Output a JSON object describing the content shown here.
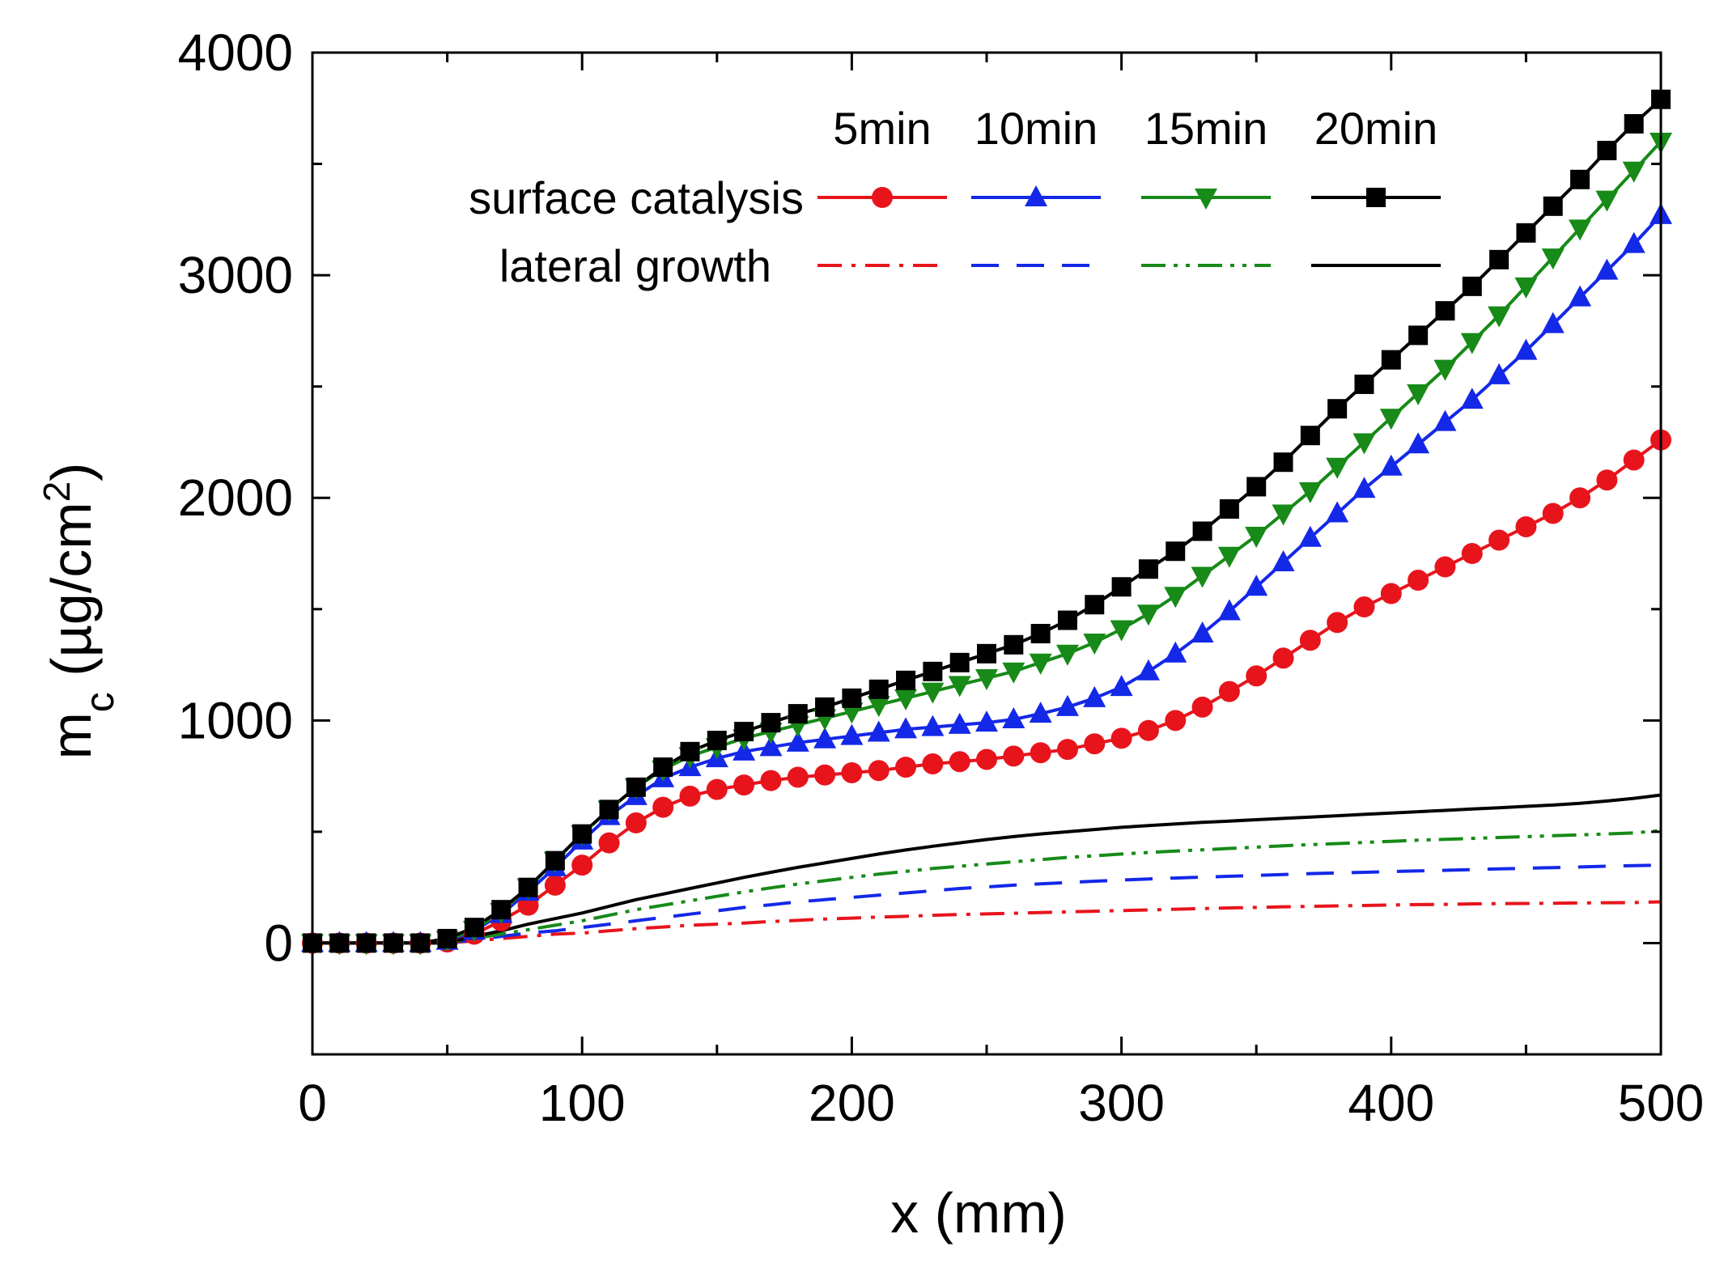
{
  "chart_data": {
    "type": "line",
    "title": "",
    "xlabel": "x (mm)",
    "ylabel": {
      "main": "m",
      "sub": "c",
      "unit_pre": " (µg/cm",
      "unit_sup": "2",
      "unit_post": ")"
    },
    "xlim": [
      0,
      500
    ],
    "ylim": [
      -500,
      4000
    ],
    "xticks": [
      0,
      100,
      200,
      300,
      400,
      500
    ],
    "yticks": [
      0,
      1000,
      2000,
      3000,
      4000
    ],
    "grid": false,
    "legend": {
      "placement": "top-right",
      "column_headers": [
        "5min",
        "10min",
        "15min",
        "20min"
      ],
      "row_labels": [
        "surface catalysis",
        "lateral growth"
      ]
    },
    "x": [
      0,
      10,
      20,
      30,
      40,
      50,
      60,
      70,
      80,
      90,
      100,
      110,
      120,
      130,
      140,
      150,
      160,
      170,
      180,
      190,
      200,
      210,
      220,
      230,
      240,
      250,
      260,
      270,
      280,
      290,
      300,
      310,
      320,
      330,
      340,
      350,
      360,
      370,
      380,
      390,
      400,
      410,
      420,
      430,
      440,
      450,
      460,
      470,
      480,
      490,
      500
    ],
    "series": [
      {
        "name": "surface catalysis 5min",
        "group": "surface catalysis",
        "time": "5min",
        "color": "#e8141c",
        "marker": "circle",
        "dash": "solid",
        "values": [
          0,
          0,
          0,
          0,
          0,
          5,
          40,
          100,
          170,
          260,
          350,
          450,
          540,
          610,
          660,
          690,
          710,
          730,
          745,
          755,
          765,
          775,
          790,
          805,
          815,
          825,
          840,
          855,
          870,
          895,
          920,
          955,
          1000,
          1060,
          1130,
          1200,
          1280,
          1360,
          1440,
          1510,
          1570,
          1630,
          1690,
          1750,
          1810,
          1870,
          1930,
          2000,
          2080,
          2170,
          2260
        ]
      },
      {
        "name": "surface catalysis 10min",
        "group": "surface catalysis",
        "time": "10min",
        "color": "#1428e8",
        "marker": "triangle-up",
        "dash": "solid",
        "values": [
          0,
          0,
          0,
          0,
          0,
          10,
          55,
          130,
          230,
          340,
          460,
          570,
          660,
          740,
          790,
          830,
          860,
          880,
          900,
          915,
          930,
          945,
          960,
          970,
          980,
          990,
          1005,
          1030,
          1060,
          1100,
          1150,
          1220,
          1300,
          1390,
          1490,
          1600,
          1710,
          1820,
          1930,
          2040,
          2140,
          2240,
          2340,
          2440,
          2550,
          2660,
          2780,
          2900,
          3020,
          3140,
          3270
        ]
      },
      {
        "name": "surface catalysis 15min",
        "group": "surface catalysis",
        "time": "15min",
        "color": "#178a17",
        "marker": "triangle-down",
        "dash": "solid",
        "values": [
          0,
          0,
          0,
          0,
          0,
          15,
          60,
          140,
          250,
          370,
          490,
          600,
          700,
          780,
          840,
          880,
          920,
          950,
          980,
          1010,
          1040,
          1070,
          1100,
          1130,
          1160,
          1190,
          1220,
          1260,
          1300,
          1350,
          1410,
          1480,
          1560,
          1650,
          1740,
          1830,
          1930,
          2030,
          2140,
          2250,
          2360,
          2470,
          2580,
          2700,
          2820,
          2950,
          3080,
          3210,
          3340,
          3470,
          3600
        ]
      },
      {
        "name": "surface catalysis 20min",
        "group": "surface catalysis",
        "time": "20min",
        "color": "#000000",
        "marker": "square",
        "dash": "solid",
        "values": [
          0,
          0,
          0,
          0,
          0,
          20,
          70,
          150,
          250,
          370,
          490,
          600,
          700,
          790,
          860,
          910,
          950,
          990,
          1030,
          1060,
          1100,
          1140,
          1180,
          1220,
          1260,
          1300,
          1340,
          1390,
          1450,
          1520,
          1600,
          1680,
          1760,
          1850,
          1950,
          2050,
          2160,
          2280,
          2400,
          2510,
          2620,
          2730,
          2840,
          2950,
          3070,
          3190,
          3310,
          3430,
          3560,
          3680,
          3790
        ]
      },
      {
        "name": "lateral growth 5min",
        "group": "lateral growth",
        "time": "5min",
        "color": "#e8141c",
        "marker": "none",
        "dash": "dash-dot",
        "values": [
          0,
          0,
          0,
          0,
          0,
          0,
          10,
          20,
          30,
          40,
          45,
          55,
          65,
          72,
          80,
          85,
          90,
          97,
          102,
          108,
          112,
          117,
          120,
          125,
          128,
          131,
          134,
          137,
          140,
          143,
          146,
          149,
          152,
          155,
          158,
          160,
          163,
          165,
          167,
          169,
          171,
          173,
          174,
          176,
          177,
          178,
          179,
          180,
          181,
          182,
          185
        ]
      },
      {
        "name": "lateral growth 10min",
        "group": "lateral growth",
        "time": "10min",
        "color": "#1428e8",
        "marker": "none",
        "dash": "dash",
        "values": [
          0,
          0,
          0,
          0,
          0,
          0,
          15,
          30,
          45,
          55,
          70,
          85,
          100,
          115,
          130,
          145,
          160,
          172,
          185,
          195,
          205,
          215,
          225,
          235,
          245,
          252,
          260,
          266,
          272,
          278,
          283,
          288,
          292,
          296,
          300,
          304,
          308,
          312,
          315,
          318,
          321,
          324,
          327,
          330,
          333,
          336,
          339,
          342,
          345,
          348,
          350
        ]
      },
      {
        "name": "lateral growth 15min",
        "group": "lateral growth",
        "time": "15min",
        "color": "#178a17",
        "marker": "none",
        "dash": "dash-dot-dot",
        "values": [
          0,
          0,
          0,
          0,
          0,
          0,
          20,
          40,
          60,
          80,
          100,
          125,
          150,
          170,
          190,
          210,
          230,
          248,
          265,
          280,
          295,
          310,
          322,
          335,
          345,
          355,
          365,
          375,
          385,
          392,
          400,
          407,
          413,
          419,
          425,
          431,
          437,
          442,
          447,
          452,
          457,
          462,
          466,
          470,
          474,
          478,
          482,
          486,
          490,
          495,
          505
        ]
      },
      {
        "name": "lateral growth 20min",
        "group": "lateral growth",
        "time": "20min",
        "color": "#000000",
        "marker": "none",
        "dash": "solid",
        "values": [
          0,
          0,
          0,
          0,
          0,
          0,
          30,
          55,
          85,
          110,
          135,
          165,
          195,
          220,
          245,
          270,
          295,
          318,
          340,
          360,
          380,
          400,
          418,
          435,
          450,
          465,
          478,
          490,
          500,
          510,
          520,
          528,
          535,
          542,
          548,
          554,
          560,
          566,
          572,
          578,
          584,
          590,
          596,
          602,
          608,
          614,
          620,
          628,
          638,
          650,
          665
        ]
      }
    ]
  }
}
